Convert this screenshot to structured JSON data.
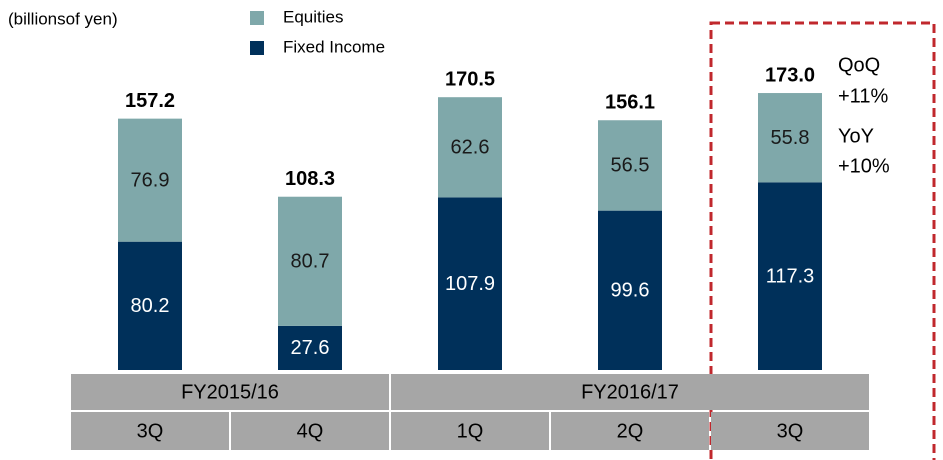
{
  "chart_data": {
    "type": "bar",
    "stacked": true,
    "unit_label": "(billionsof yen)",
    "categories": [
      "3Q",
      "4Q",
      "1Q",
      "2Q",
      "3Q"
    ],
    "category_groups": [
      "FY2015/16",
      "FY2015/16",
      "FY2016/17",
      "FY2016/17",
      "FY2016/17"
    ],
    "series": [
      {
        "name": "Fixed Income",
        "color": "#00305a",
        "values": [
          80.2,
          27.6,
          107.9,
          99.6,
          117.3
        ]
      },
      {
        "name": "Equities",
        "color": "#7fa8aa",
        "values": [
          76.9,
          80.7,
          62.6,
          56.5,
          55.8
        ]
      }
    ],
    "totals": {
      "values": [
        157.2,
        108.3,
        170.5,
        156.1,
        173.0
      ],
      "value_labels": [
        "157.2",
        "108.3",
        "170.5",
        "156.1",
        "173.0"
      ]
    },
    "annotations": [
      "QoQ",
      "+11%",
      "YoY",
      "+10%"
    ]
  }
}
